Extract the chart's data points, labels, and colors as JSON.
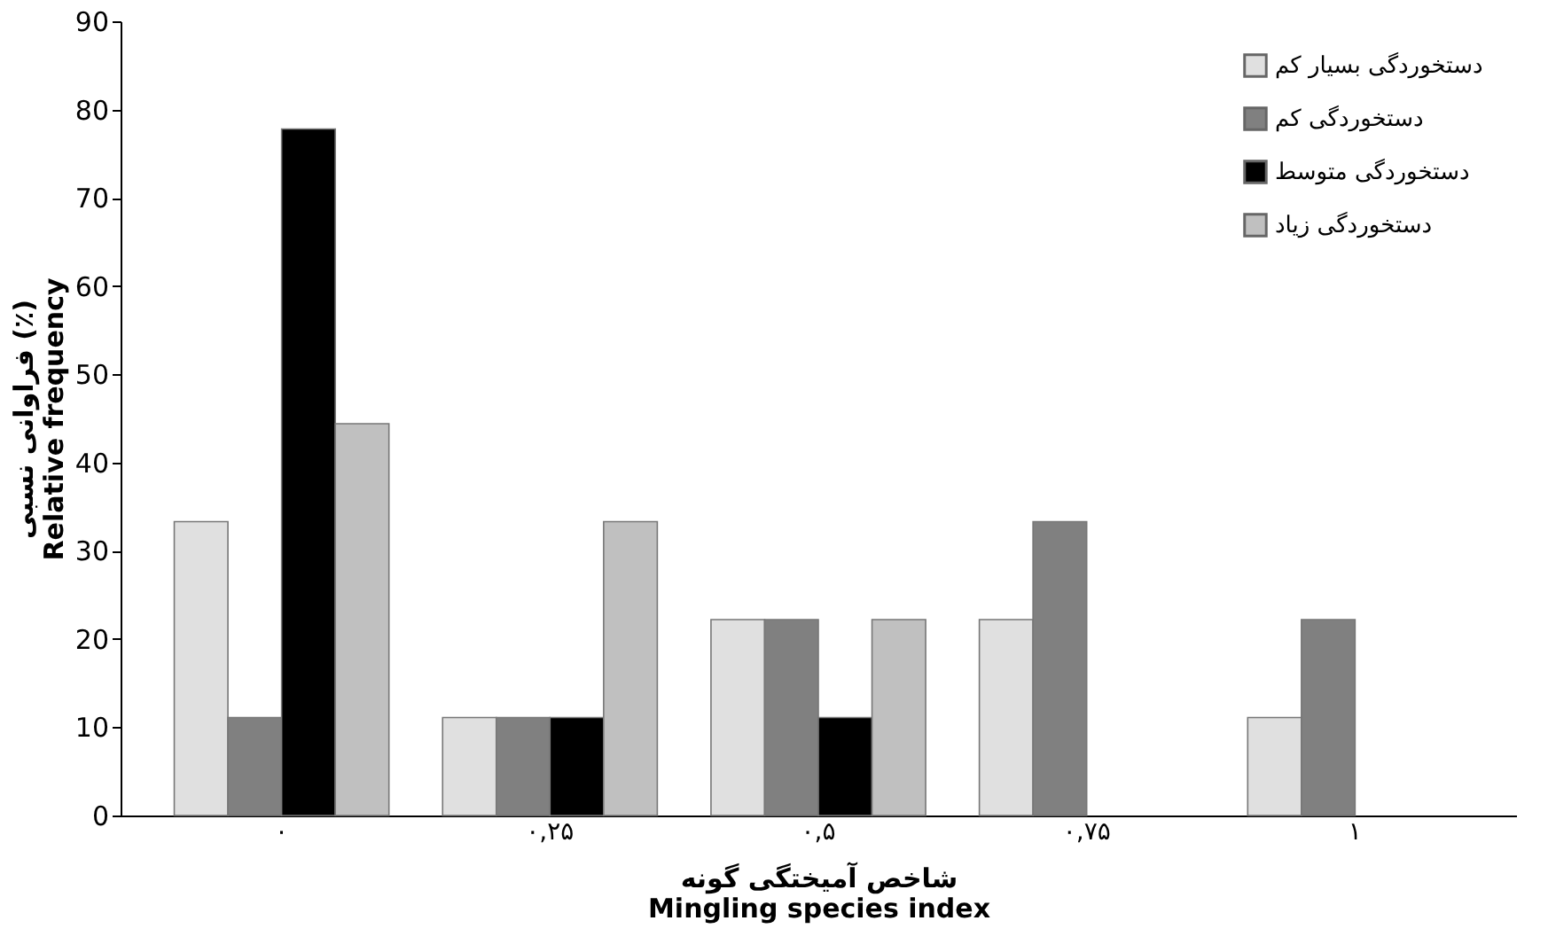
{
  "chart_data": {
    "type": "bar",
    "xlabel": "شاخص آمیختگی گونه\nMingling species index",
    "ylabel": "فراوانی نسبی (٪)\nRelative frequency",
    "categories": [
      "۰",
      "۰,۲۵",
      "۰,۵",
      "۰,۷۵",
      "۱"
    ],
    "series": [
      {
        "name": "دستخوردگی بسیار کم",
        "color": "#e0e0e0",
        "values": [
          33.3,
          11.1,
          22.2,
          22.2,
          11.1
        ]
      },
      {
        "name": "دستخوردگی کم",
        "color": "#808080",
        "values": [
          11.1,
          11.1,
          22.2,
          33.3,
          22.2
        ]
      },
      {
        "name": "دستخوردگی متوسط",
        "color": "#000000",
        "values": [
          77.8,
          11.1,
          11.1,
          0,
          0
        ]
      },
      {
        "name": "دستخوردگی زیاد",
        "color": "#c0c0c0",
        "values": [
          44.4,
          33.3,
          22.2,
          0,
          0
        ]
      }
    ],
    "ylim": [
      0,
      90
    ],
    "yticks": [
      0,
      10,
      20,
      30,
      40,
      50,
      60,
      70,
      80,
      90
    ],
    "grid": false,
    "legend": "top right"
  }
}
